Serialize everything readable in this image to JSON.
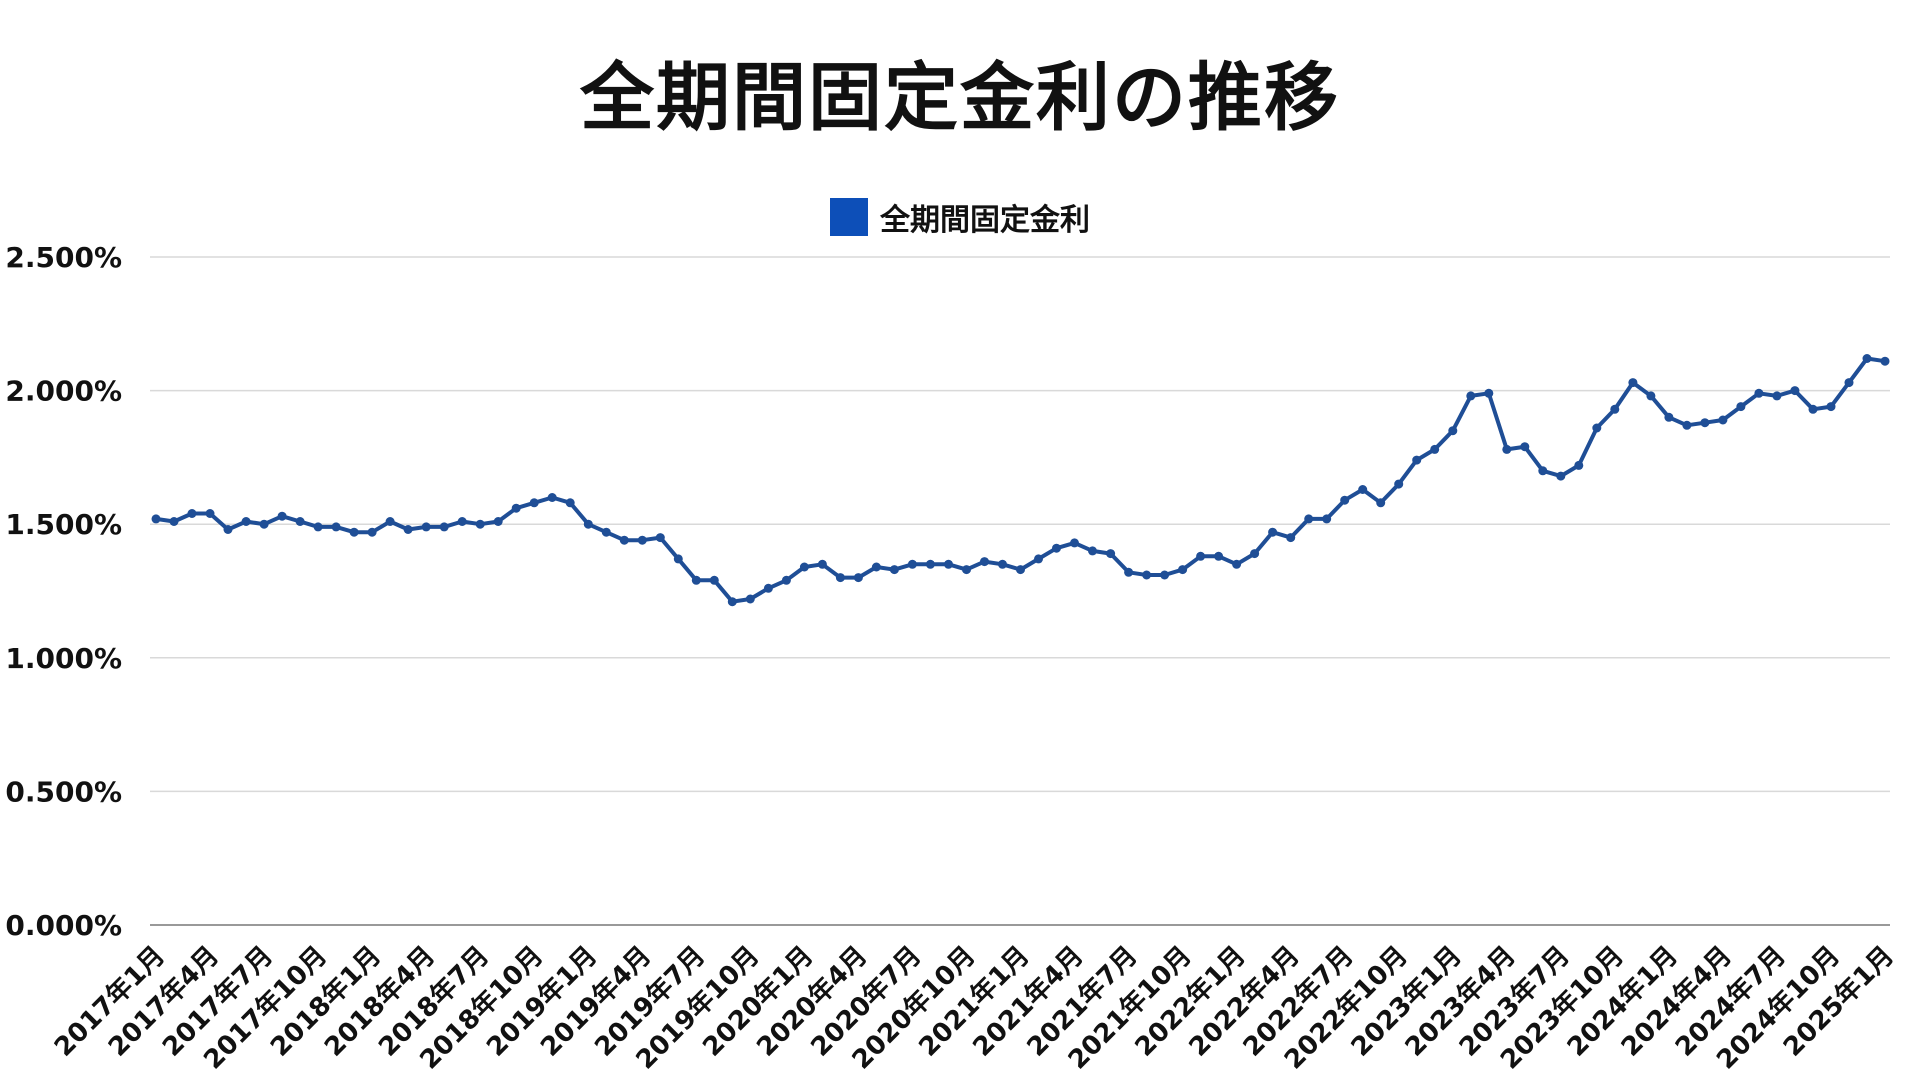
{
  "chart_data": {
    "type": "line",
    "title": "全期間固定金利の推移",
    "xlabel": "",
    "ylabel": "",
    "ylim": [
      0,
      2.5
    ],
    "yticks": [
      "0.000%",
      "0.500%",
      "1.000%",
      "1.500%",
      "2.000%",
      "2.500%"
    ],
    "grid": true,
    "legend_position": "top-center",
    "colors": {
      "series": "#1f4e96",
      "legend": "#0d4fb8",
      "grid": "#d9d9d9",
      "axis": "#999999"
    },
    "x_tick_labels": [
      "2017年1月",
      "2017年4月",
      "2017年7月",
      "2017年10月",
      "2018年1月",
      "2018年4月",
      "2018年7月",
      "2018年10月",
      "2019年1月",
      "2019年4月",
      "2019年7月",
      "2019年10月",
      "2020年1月",
      "2020年4月",
      "2020年7月",
      "2020年10月",
      "2021年1月",
      "2021年4月",
      "2021年7月",
      "2021年10月",
      "2022年1月",
      "2022年4月",
      "2022年7月",
      "2022年10月",
      "2023年1月",
      "2023年4月",
      "2023年7月",
      "2023年10月",
      "2024年1月",
      "2024年4月",
      "2024年7月",
      "2024年10月",
      "2025年1月"
    ],
    "series": [
      {
        "name": "全期間固定金利",
        "values": [
          1.52,
          1.51,
          1.54,
          1.54,
          1.48,
          1.51,
          1.5,
          1.53,
          1.51,
          1.49,
          1.49,
          1.47,
          1.47,
          1.51,
          1.48,
          1.49,
          1.49,
          1.51,
          1.5,
          1.51,
          1.56,
          1.58,
          1.6,
          1.58,
          1.5,
          1.47,
          1.44,
          1.44,
          1.45,
          1.37,
          1.29,
          1.29,
          1.21,
          1.22,
          1.26,
          1.29,
          1.34,
          1.35,
          1.3,
          1.3,
          1.34,
          1.33,
          1.35,
          1.35,
          1.35,
          1.33,
          1.36,
          1.35,
          1.33,
          1.37,
          1.41,
          1.43,
          1.4,
          1.39,
          1.32,
          1.31,
          1.31,
          1.33,
          1.38,
          1.38,
          1.35,
          1.39,
          1.47,
          1.45,
          1.52,
          1.52,
          1.59,
          1.63,
          1.58,
          1.65,
          1.74,
          1.78,
          1.85,
          1.98,
          1.99,
          1.78,
          1.79,
          1.7,
          1.68,
          1.72,
          1.86,
          1.93,
          2.03,
          1.98,
          1.9,
          1.87,
          1.88,
          1.89,
          1.94,
          1.99,
          1.98,
          2.0,
          1.93,
          1.94,
          2.03,
          2.12,
          2.11
        ]
      }
    ]
  }
}
